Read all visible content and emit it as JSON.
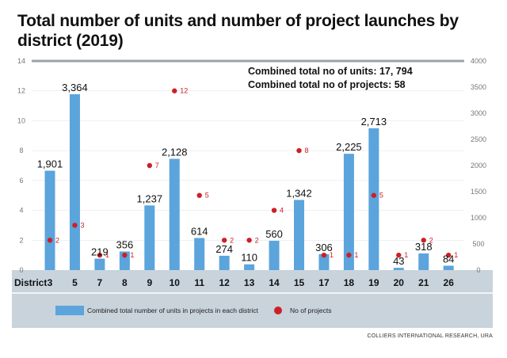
{
  "title": "Total number of units and number of project launches by district (2019)",
  "source": "COLLIERS INTERNATIONAL RESEARCH, URA",
  "colors": {
    "bar": "#5ba4dc",
    "dot": "#cc2027",
    "band": "#c8d3dc",
    "axis_line": "#9aa3ad",
    "grid": "#e3e7eb"
  },
  "chart_data": {
    "type": "bar",
    "x_axis_label": "District",
    "categories": [
      "3",
      "5",
      "7",
      "8",
      "9",
      "10",
      "11",
      "12",
      "13",
      "14",
      "15",
      "17",
      "18",
      "19",
      "20",
      "21",
      "26"
    ],
    "series": [
      {
        "name": "Combined total number of units in projects in each district",
        "axis": "right",
        "kind": "bar",
        "values": [
          1901,
          3364,
          219,
          356,
          1237,
          2128,
          614,
          274,
          110,
          560,
          1342,
          306,
          2225,
          2713,
          43,
          318,
          84
        ],
        "labels": [
          "1,901",
          "3,364",
          "219",
          "356",
          "1,237",
          "2,128",
          "614",
          "274",
          "110",
          "560",
          "1,342",
          "306",
          "2,225",
          "2,713",
          "43",
          "318",
          "84"
        ]
      },
      {
        "name": "No of projects",
        "axis": "left",
        "kind": "scatter",
        "values": [
          2,
          3,
          1,
          1,
          7,
          12,
          5,
          2,
          2,
          4,
          8,
          1,
          1,
          5,
          1,
          2,
          1
        ]
      }
    ],
    "left_axis": {
      "range": [
        0,
        14
      ],
      "ticks": [
        0,
        2,
        4,
        6,
        8,
        10,
        12,
        14
      ]
    },
    "right_axis": {
      "range": [
        0,
        4000
      ],
      "ticks": [
        0,
        500,
        1000,
        1500,
        2000,
        2500,
        3000,
        3500,
        4000
      ]
    },
    "annotations": [
      "Combined total no of units: 17, 794",
      "Combined total no of projects: 58"
    ],
    "legend_position": "bottom"
  }
}
